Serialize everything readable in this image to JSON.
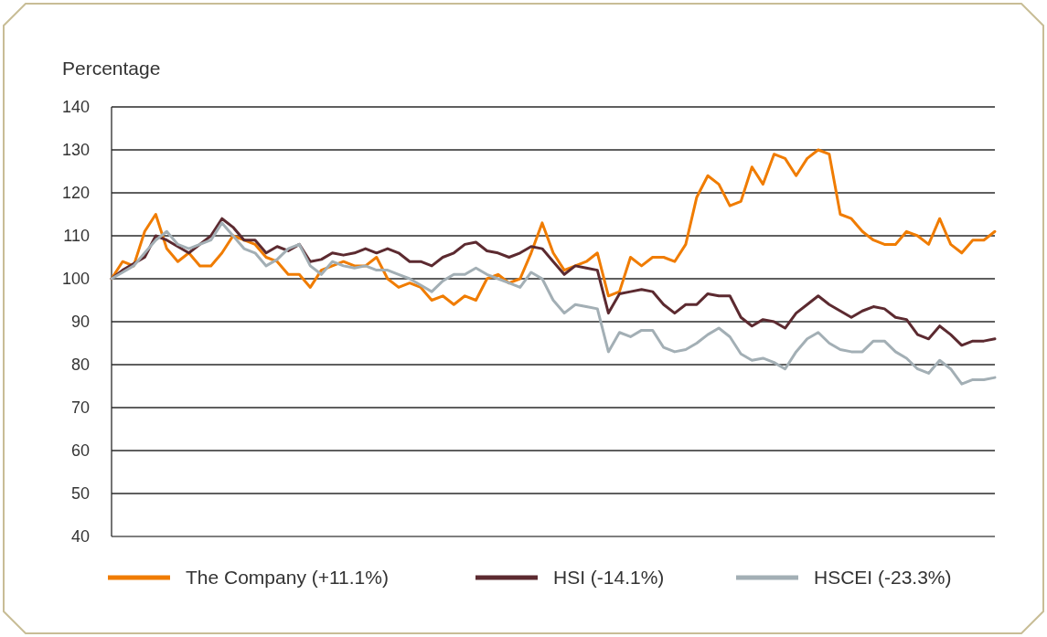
{
  "chart_data": {
    "type": "line",
    "ylabel": "Percentage",
    "categories": [
      null,
      null,
      null,
      null,
      null,
      null,
      null,
      null,
      null,
      null,
      null,
      null,
      null,
      null,
      null,
      null,
      null,
      null,
      null,
      null,
      null,
      null,
      null,
      null,
      null,
      null,
      null,
      null,
      null,
      null,
      null,
      null,
      null,
      null,
      null,
      null,
      null,
      null,
      null,
      null,
      null,
      null,
      null,
      null,
      null,
      null,
      null,
      null,
      null,
      null,
      null,
      null,
      null,
      null,
      null,
      null,
      null,
      null,
      null,
      null,
      null,
      null,
      null,
      null,
      null,
      null,
      null,
      null,
      null,
      null,
      null,
      null,
      null,
      null,
      null,
      null,
      null,
      null,
      null,
      null,
      null
    ],
    "series": [
      {
        "name": "The Company (+11.1%)",
        "color": "#f07c00",
        "values": [
          100,
          104,
          103,
          111,
          115,
          107,
          104,
          106,
          103,
          103,
          106,
          110,
          109,
          108,
          105,
          104,
          101,
          101,
          98,
          102,
          103,
          104,
          103,
          103,
          105,
          100,
          98,
          99,
          98,
          95,
          96,
          94,
          96,
          95,
          100,
          101,
          99,
          100,
          106,
          113,
          106,
          102,
          103,
          104,
          106,
          96,
          97,
          105,
          103,
          105,
          105,
          104,
          108,
          119,
          124,
          122,
          117,
          118,
          126,
          122,
          129,
          128,
          124,
          128,
          130,
          129,
          115,
          114,
          111,
          109,
          108,
          108,
          111,
          110,
          108,
          114,
          108,
          106,
          109,
          109,
          111
        ]
      },
      {
        "name": "HSI (-14.1%)",
        "color": "#5c2a30",
        "values": [
          100,
          102,
          103.5,
          105,
          110,
          109,
          107.5,
          106,
          108,
          110,
          114,
          112,
          109,
          109,
          106,
          107.5,
          106.5,
          108,
          104,
          104.5,
          106,
          105.5,
          106,
          107,
          106,
          107,
          106,
          104,
          104,
          103,
          105,
          106,
          108,
          108.5,
          106.5,
          106,
          105,
          106,
          107.5,
          107,
          104,
          101,
          103,
          102.5,
          102,
          92,
          96.5,
          97,
          97.5,
          97,
          94,
          92,
          94,
          94,
          96.5,
          96,
          96,
          91,
          89,
          90.5,
          90,
          88.5,
          92,
          94,
          96,
          94,
          92.5,
          91,
          92.5,
          93.5,
          93,
          91,
          90.5,
          87,
          86,
          89,
          87,
          84.5,
          85.5,
          85.5,
          86
        ]
      },
      {
        "name": "HSCEI (-23.3%)",
        "color": "#a3afb5",
        "values": [
          100,
          101.5,
          103,
          106,
          109,
          111,
          108,
          107,
          108,
          109,
          113,
          110,
          107,
          106,
          103,
          104.5,
          107,
          108,
          103,
          101,
          104,
          103,
          102.5,
          103,
          102,
          102,
          101,
          100,
          98.5,
          97,
          99.5,
          101,
          101,
          102.5,
          101,
          100,
          99,
          98,
          101.5,
          100,
          95,
          92,
          94,
          93.5,
          93,
          83,
          87.5,
          86.5,
          88,
          88,
          84,
          83,
          83.5,
          85,
          87,
          88.5,
          86.5,
          82.5,
          81,
          81.5,
          80.5,
          79,
          83,
          86,
          87.5,
          85,
          83.5,
          83,
          83,
          85.5,
          85.5,
          83,
          81.5,
          79,
          78,
          81,
          79,
          75.5,
          76.5,
          76.5,
          77
        ]
      }
    ],
    "ylim": [
      40,
      140
    ],
    "yticks": [
      40,
      50,
      60,
      70,
      80,
      90,
      100,
      110,
      120,
      130,
      140
    ],
    "grid": "y",
    "legend": "bottom",
    "line_style": "solid",
    "marker": "none"
  }
}
